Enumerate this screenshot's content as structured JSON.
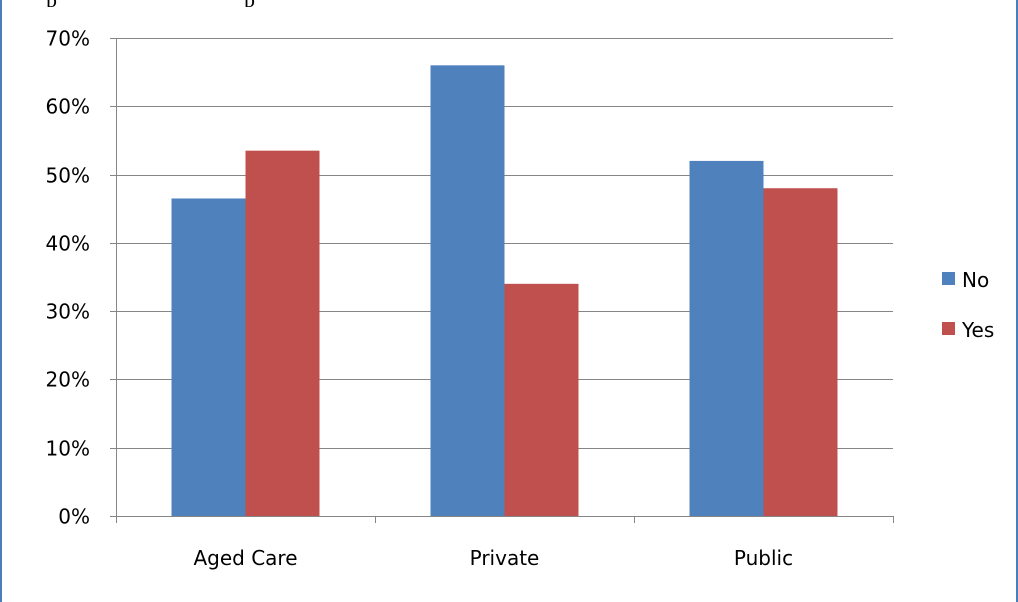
{
  "chart_data": {
    "type": "bar",
    "categories": [
      "Aged Care",
      "Private",
      "Public"
    ],
    "series": [
      {
        "name": "No",
        "values": [
          46.5,
          66,
          52
        ]
      },
      {
        "name": "Yes",
        "values": [
          53.5,
          34,
          48
        ]
      }
    ],
    "ylim": [
      0,
      70
    ],
    "yticks": [
      0,
      10,
      20,
      30,
      40,
      50,
      60,
      70
    ],
    "ytick_labels": [
      "0%",
      "10%",
      "20%",
      "30%",
      "40%",
      "50%",
      "60%",
      "70%"
    ],
    "xlabel": "",
    "ylabel": "",
    "grid": true,
    "legend_position": "right",
    "colors": [
      "#4f81bd",
      "#c0504d"
    ]
  }
}
